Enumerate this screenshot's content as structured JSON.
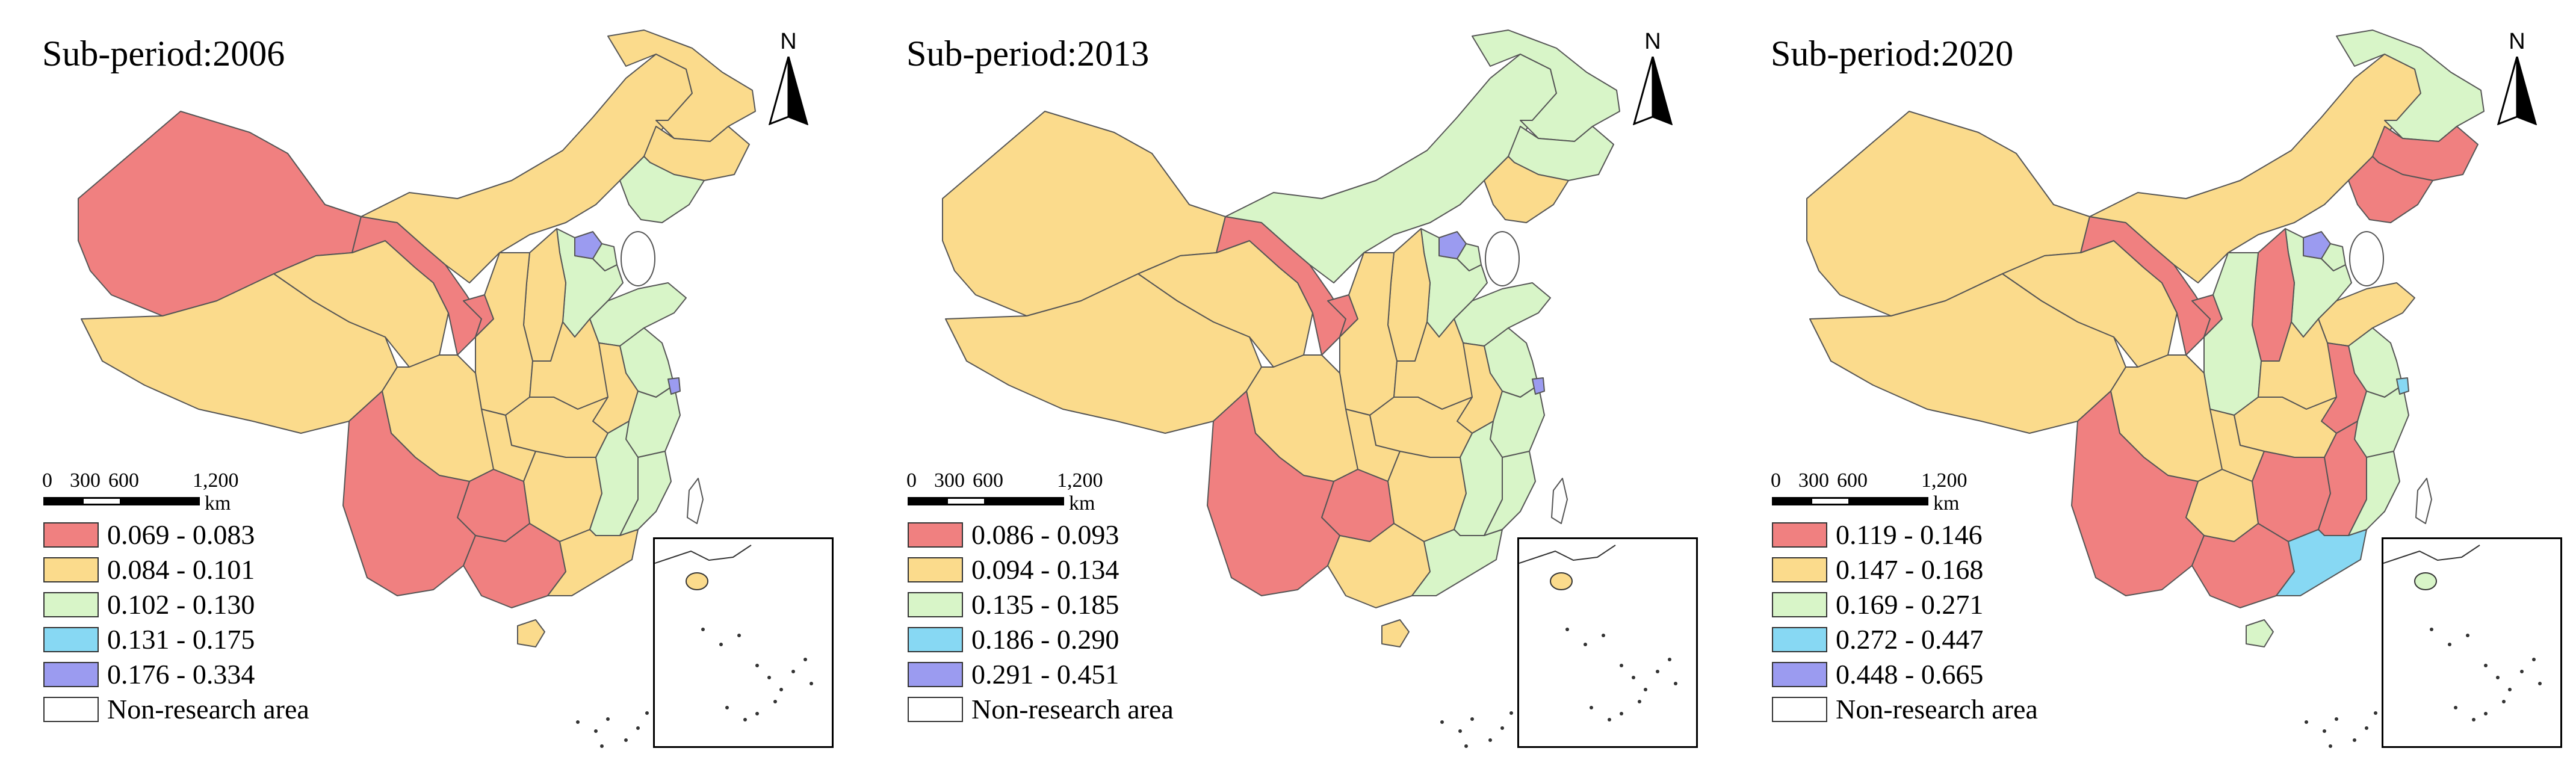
{
  "colors": {
    "red": "#f08080",
    "yellow": "#fbdb8c",
    "green": "#d8f5c8",
    "blue": "#87d8f3",
    "purple": "#9b9bf0",
    "white": "#ffffff"
  },
  "north_label": "N",
  "scale_bar": {
    "labels": [
      "0",
      "300",
      "600",
      "1,200"
    ],
    "unit": "km"
  },
  "panels": [
    {
      "title": "Sub-period:2006",
      "legend": [
        {
          "label": "0.069 - 0.083",
          "color": "red"
        },
        {
          "label": "0.084 - 0.101",
          "color": "yellow"
        },
        {
          "label": "0.102 - 0.130",
          "color": "green"
        },
        {
          "label": "0.131 - 0.175",
          "color": "blue"
        },
        {
          "label": "0.176 - 0.334",
          "color": "purple"
        },
        {
          "label": "Non-research area",
          "color": "white"
        }
      ],
      "regions": {
        "xinjiang": "red",
        "tibet": "yellow",
        "qinghai": "yellow",
        "gansu": "red",
        "ningxia": "red",
        "inner_mongolia": "yellow",
        "heilongjiang": "yellow",
        "jilin": "yellow",
        "liaoning": "green",
        "beijing": "purple",
        "tianjin": "green",
        "hebei": "green",
        "shanxi": "yellow",
        "shaanxi": "yellow",
        "shandong": "green",
        "henan": "yellow",
        "jiangsu": "green",
        "shanghai": "purple",
        "anhui": "yellow",
        "zhejiang": "green",
        "hubei": "yellow",
        "sichuan": "yellow",
        "chongqing": "yellow",
        "hunan": "yellow",
        "jiangxi": "green",
        "fujian": "green",
        "guizhou": "red",
        "yunnan": "red",
        "guangxi": "red",
        "guangdong": "yellow",
        "hainan": "yellow",
        "taiwan": "white"
      }
    },
    {
      "title": "Sub-period:2013",
      "legend": [
        {
          "label": "0.086 - 0.093",
          "color": "red"
        },
        {
          "label": "0.094 - 0.134",
          "color": "yellow"
        },
        {
          "label": "0.135 - 0.185",
          "color": "green"
        },
        {
          "label": "0.186 - 0.290",
          "color": "blue"
        },
        {
          "label": "0.291 - 0.451",
          "color": "purple"
        },
        {
          "label": "Non-research area",
          "color": "white"
        }
      ],
      "regions": {
        "xinjiang": "yellow",
        "tibet": "yellow",
        "qinghai": "yellow",
        "gansu": "red",
        "ningxia": "red",
        "inner_mongolia": "green",
        "heilongjiang": "green",
        "jilin": "green",
        "liaoning": "yellow",
        "beijing": "purple",
        "tianjin": "green",
        "hebei": "green",
        "shanxi": "yellow",
        "shaanxi": "yellow",
        "shandong": "green",
        "henan": "yellow",
        "jiangsu": "green",
        "shanghai": "purple",
        "anhui": "yellow",
        "zhejiang": "green",
        "hubei": "yellow",
        "sichuan": "yellow",
        "chongqing": "yellow",
        "hunan": "yellow",
        "jiangxi": "green",
        "fujian": "green",
        "guizhou": "red",
        "yunnan": "red",
        "guangxi": "yellow",
        "guangdong": "green",
        "hainan": "yellow",
        "taiwan": "white"
      }
    },
    {
      "title": "Sub-period:2020",
      "legend": [
        {
          "label": "0.119 - 0.146",
          "color": "red"
        },
        {
          "label": "0.147 - 0.168",
          "color": "yellow"
        },
        {
          "label": "0.169 - 0.271",
          "color": "green"
        },
        {
          "label": "0.272 - 0.447",
          "color": "blue"
        },
        {
          "label": "0.448 - 0.665",
          "color": "purple"
        },
        {
          "label": "Non-research area",
          "color": "white"
        }
      ],
      "regions": {
        "xinjiang": "yellow",
        "tibet": "yellow",
        "qinghai": "yellow",
        "gansu": "red",
        "ningxia": "red",
        "inner_mongolia": "yellow",
        "heilongjiang": "green",
        "jilin": "red",
        "liaoning": "red",
        "beijing": "purple",
        "tianjin": "green",
        "hebei": "green",
        "shanxi": "red",
        "shaanxi": "green",
        "shandong": "yellow",
        "henan": "yellow",
        "jiangsu": "green",
        "shanghai": "blue",
        "anhui": "red",
        "zhejiang": "green",
        "hubei": "yellow",
        "sichuan": "yellow",
        "chongqing": "yellow",
        "hunan": "red",
        "jiangxi": "red",
        "fujian": "green",
        "guizhou": "yellow",
        "yunnan": "red",
        "guangxi": "red",
        "guangdong": "blue",
        "hainan": "green",
        "taiwan": "white"
      }
    }
  ]
}
